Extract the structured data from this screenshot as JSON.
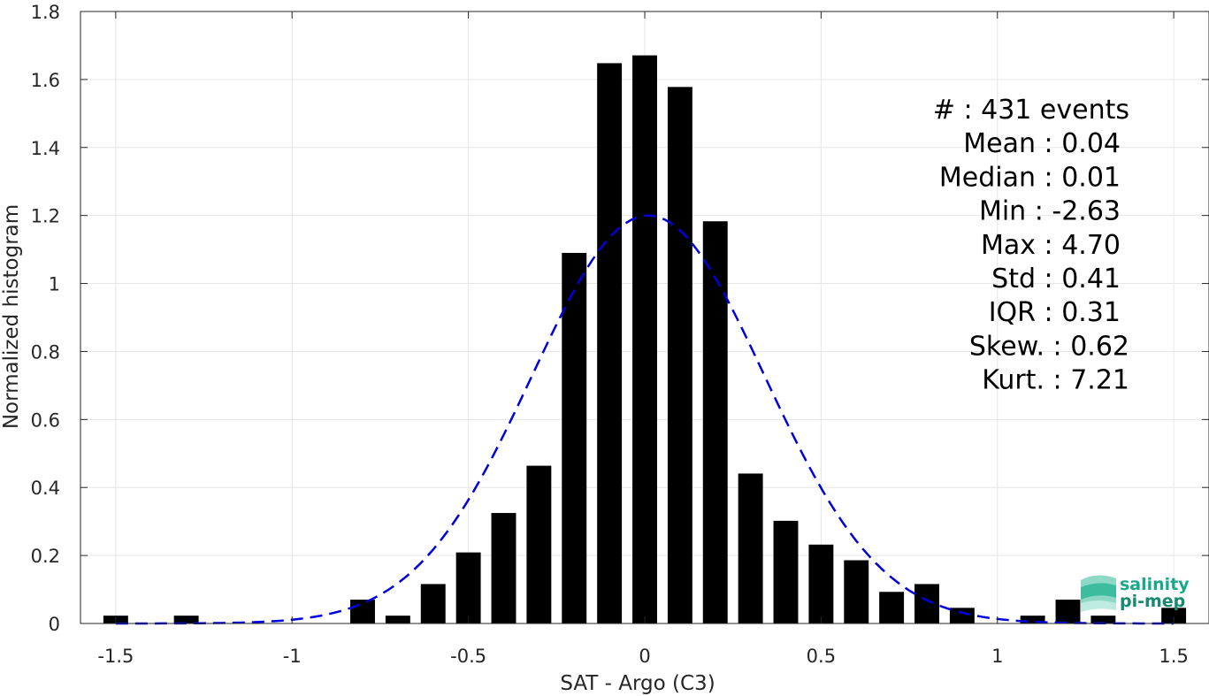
{
  "chart_data": {
    "type": "bar",
    "xlabel": "SAT - Argo (C3)",
    "ylabel": "Normalized histogram",
    "xlim": [
      -1.6,
      1.6
    ],
    "ylim": [
      0,
      1.8
    ],
    "grid": true,
    "x_ticks": [
      -1.5,
      -1,
      -0.5,
      0,
      0.5,
      1,
      1.5
    ],
    "x_tick_labels": [
      "-1.5",
      "-1",
      "-0.5",
      "0",
      "0.5",
      "1",
      "1.5"
    ],
    "y_ticks": [
      0,
      0.2,
      0.4,
      0.6,
      0.8,
      1,
      1.2,
      1.4,
      1.6,
      1.8
    ],
    "y_tick_labels": [
      "0",
      "0.2",
      "0.4",
      "0.6",
      "0.8",
      "1",
      "1.2",
      "1.4",
      "1.6",
      "1.8"
    ],
    "bin_width": 0.1,
    "bar_color": "#000000",
    "bars": {
      "x": [
        -1.5,
        -1.3,
        -0.8,
        -0.7,
        -0.6,
        -0.5,
        -0.4,
        -0.3,
        -0.2,
        -0.1,
        0.0,
        0.1,
        0.2,
        0.3,
        0.4,
        0.5,
        0.6,
        0.7,
        0.8,
        0.9,
        1.1,
        1.2,
        1.3,
        1.5
      ],
      "values": [
        0.023,
        0.023,
        0.07,
        0.023,
        0.116,
        0.209,
        0.325,
        0.464,
        1.09,
        1.648,
        1.671,
        1.578,
        1.183,
        0.441,
        0.302,
        0.232,
        0.186,
        0.093,
        0.116,
        0.046,
        0.023,
        0.07,
        0.023,
        0.046
      ]
    },
    "fit_curve": {
      "style": "dashed",
      "color": "#0000dd",
      "mean": 0.01,
      "std": 0.33,
      "peak": 1.2,
      "x_range": [
        -1.5,
        1.5
      ]
    },
    "annotations": [
      "#  : 431 events",
      "Mean : 0.04",
      "Median : 0.01",
      "Min : -2.63",
      "Max : 4.70",
      "Std : 0.41",
      "IQR : 0.31",
      "Skew. : 0.62",
      "Kurt. : 7.21"
    ]
  },
  "logo": {
    "line1": "salinity",
    "line2": "pi-mep",
    "color": "#1aa88a"
  }
}
